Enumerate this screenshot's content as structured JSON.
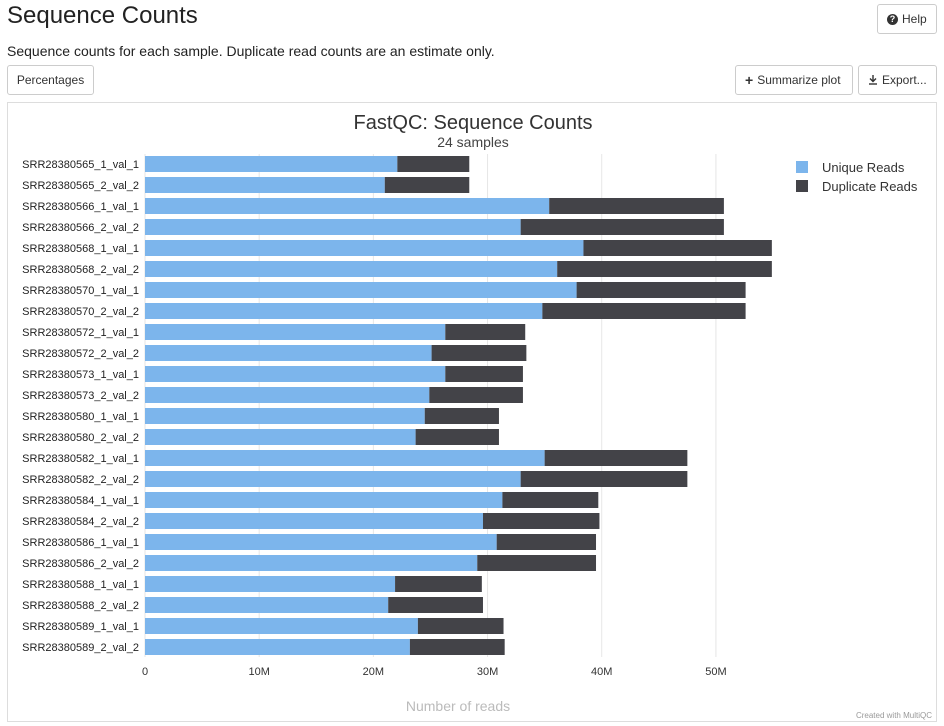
{
  "page": {
    "title": "Sequence Counts",
    "description": "Sequence counts for each sample. Duplicate read counts are an estimate only."
  },
  "toolbar": {
    "help_label": "Help",
    "percentages_label": "Percentages",
    "summarize_label": "Summarize plot",
    "export_label": "Export..."
  },
  "icons": {
    "help": "question-circle-icon",
    "summarize": "plus-icon",
    "export": "download-icon"
  },
  "footer": {
    "credit": "Created with MultiQC"
  },
  "colors": {
    "unique": "#7cb5ec",
    "duplicate": "#434348"
  },
  "chart_data": {
    "type": "bar",
    "orientation": "horizontal",
    "stacked": true,
    "title": "FastQC: Sequence Counts",
    "subtitle": "24 samples",
    "xlabel": "Number of reads",
    "ylabel": "",
    "xlim": [
      0,
      55
    ],
    "x_ticks": [
      "0",
      "10M",
      "20M",
      "30M",
      "40M",
      "50M"
    ],
    "x_tick_values": [
      0,
      10,
      20,
      30,
      40,
      50
    ],
    "grid": true,
    "legend_position": "top-right",
    "categories": [
      "SRR28380565_1_val_1",
      "SRR28380565_2_val_2",
      "SRR28380566_1_val_1",
      "SRR28380566_2_val_2",
      "SRR28380568_1_val_1",
      "SRR28380568_2_val_2",
      "SRR28380570_1_val_1",
      "SRR28380570_2_val_2",
      "SRR28380572_1_val_1",
      "SRR28380572_2_val_2",
      "SRR28380573_1_val_1",
      "SRR28380573_2_val_2",
      "SRR28380580_1_val_1",
      "SRR28380580_2_val_2",
      "SRR28380582_1_val_1",
      "SRR28380582_2_val_2",
      "SRR28380584_1_val_1",
      "SRR28380584_2_val_2",
      "SRR28380586_1_val_1",
      "SRR28380586_2_val_2",
      "SRR28380588_1_val_1",
      "SRR28380588_2_val_2",
      "SRR28380589_1_val_1",
      "SRR28380589_2_val_2"
    ],
    "series": [
      {
        "name": "Unique Reads",
        "values": [
          22.1,
          21.0,
          35.4,
          32.9,
          38.4,
          36.1,
          37.8,
          34.8,
          26.3,
          25.1,
          26.3,
          24.9,
          24.5,
          23.7,
          35.0,
          32.9,
          31.3,
          29.6,
          30.8,
          29.1,
          21.9,
          21.3,
          23.9,
          23.2
        ]
      },
      {
        "name": "Duplicate Reads",
        "values": [
          6.3,
          7.4,
          15.3,
          17.8,
          16.5,
          18.8,
          14.8,
          17.8,
          7.0,
          8.3,
          6.8,
          8.2,
          6.5,
          7.3,
          12.5,
          14.6,
          8.4,
          10.2,
          8.7,
          10.4,
          7.6,
          8.3,
          7.5,
          8.3
        ]
      }
    ]
  }
}
